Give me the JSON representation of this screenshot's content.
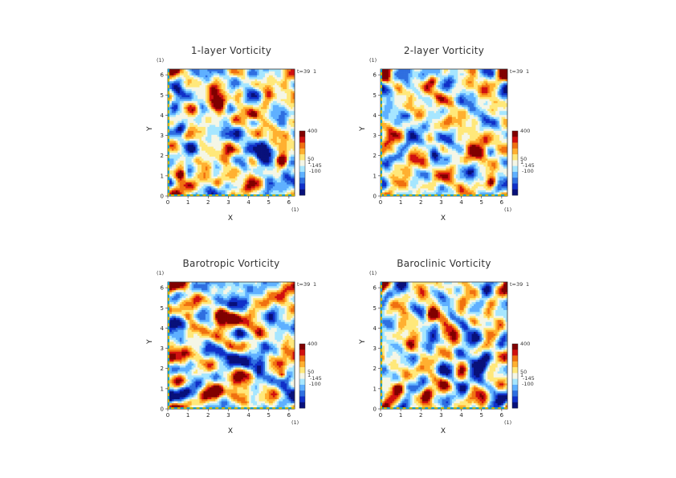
{
  "colors": {
    "scale": [
      "#08107a",
      "#1030c8",
      "#2f6fe0",
      "#5fb0ff",
      "#a6e6ff",
      "#f4f6e6",
      "#ffe87a",
      "#ffb030",
      "#f07010",
      "#d01010",
      "#800000"
    ],
    "tick_bar": [
      "#11a0c8",
      "#c8b400"
    ]
  },
  "chart_data": [
    {
      "type": "heatmap",
      "title": "1-layer Vorticity",
      "xlabel": "X",
      "ylabel": "Y",
      "xlim": [
        0,
        6.283
      ],
      "ylim": [
        0,
        6.283
      ],
      "xticks": [
        "0",
        "1",
        "2",
        "3",
        "4",
        "5",
        "6"
      ],
      "yticks": [
        "0",
        "1",
        "2",
        "3",
        "4",
        "5",
        "6"
      ],
      "unit_x": "(1)",
      "unit_y": "(1)",
      "time_label": "t=39",
      "time_unit": "1",
      "colorbar_labels": [
        "400",
        "50",
        "1",
        "-145",
        "-100"
      ],
      "grid": false,
      "vortices": [
        {
          "x": 4.7,
          "y": 2.1,
          "sign": -1,
          "r": 0.55
        },
        {
          "x": 2.55,
          "y": 4.6,
          "sign": 1,
          "r": 0.35
        },
        {
          "x": 2.4,
          "y": 0.7,
          "sign": 1,
          "r": 0.3
        },
        {
          "x": 0.7,
          "y": 1.1,
          "sign": 1,
          "r": 0.25
        },
        {
          "x": 0.6,
          "y": 3.3,
          "sign": -1,
          "r": 0.3
        },
        {
          "x": 4.3,
          "y": 4.0,
          "sign": 1,
          "r": 0.25
        },
        {
          "x": 5.7,
          "y": 1.8,
          "sign": 1,
          "r": 0.25
        }
      ],
      "seed": 11
    },
    {
      "type": "heatmap",
      "title": "2-layer Vorticity",
      "xlabel": "X",
      "ylabel": "Y",
      "xlim": [
        0,
        6.283
      ],
      "ylim": [
        0,
        6.283
      ],
      "xticks": [
        "0",
        "1",
        "2",
        "3",
        "4",
        "5",
        "6"
      ],
      "yticks": [
        "0",
        "1",
        "2",
        "3",
        "4",
        "5",
        "6"
      ],
      "unit_x": "(1)",
      "unit_y": "(1)",
      "time_label": "t=39",
      "time_unit": "1",
      "colorbar_labels": [
        "400",
        "50",
        "1",
        "-145",
        "-100"
      ],
      "grid": false,
      "vortices": [
        {
          "x": 4.8,
          "y": 2.2,
          "sign": 1,
          "r": 0.45
        },
        {
          "x": 2.6,
          "y": 5.7,
          "sign": 1,
          "r": 0.25
        },
        {
          "x": 1.3,
          "y": 4.0,
          "sign": -1,
          "r": 0.3
        },
        {
          "x": 2.7,
          "y": 2.0,
          "sign": -1,
          "r": 0.3
        },
        {
          "x": 0.6,
          "y": 2.2,
          "sign": 1,
          "r": 0.25
        },
        {
          "x": 5.5,
          "y": 0.7,
          "sign": 1,
          "r": 0.25
        }
      ],
      "seed": 23
    },
    {
      "type": "heatmap",
      "title": "Barotropic Vorticity",
      "xlabel": "X",
      "ylabel": "Y",
      "xlim": [
        0,
        6.283
      ],
      "ylim": [
        0,
        6.283
      ],
      "xticks": [
        "0",
        "1",
        "2",
        "3",
        "4",
        "5",
        "6"
      ],
      "yticks": [
        "0",
        "1",
        "2",
        "3",
        "4",
        "5",
        "6"
      ],
      "unit_x": "(1)",
      "unit_y": "(1)",
      "time_label": "t=39",
      "time_unit": "1",
      "colorbar_labels": [
        "400",
        "50",
        "1",
        "-145",
        "-100"
      ],
      "grid": false,
      "vortices": [
        {
          "x": 4.7,
          "y": 2.2,
          "sign": -1,
          "r": 0.45
        },
        {
          "x": 2.5,
          "y": 4.6,
          "sign": 1,
          "r": 0.3
        },
        {
          "x": 1.0,
          "y": 4.6,
          "sign": 1,
          "r": 0.25
        },
        {
          "x": 2.4,
          "y": 0.9,
          "sign": 1,
          "r": 0.25
        },
        {
          "x": 5.7,
          "y": 1.7,
          "sign": 1,
          "r": 0.2
        }
      ],
      "seed": 37
    },
    {
      "type": "heatmap",
      "title": "Baroclinic Vorticity",
      "xlabel": "X",
      "ylabel": "Y",
      "xlim": [
        0,
        6.283
      ],
      "ylim": [
        0,
        6.283
      ],
      "xticks": [
        "0",
        "1",
        "2",
        "3",
        "4",
        "5",
        "6"
      ],
      "yticks": [
        "0",
        "1",
        "2",
        "3",
        "4",
        "5",
        "6"
      ],
      "unit_x": "(1)",
      "unit_y": "(1)",
      "time_label": "t=39",
      "time_unit": "1",
      "colorbar_labels": [
        "400",
        "50",
        "1",
        "-145",
        "-100"
      ],
      "grid": false,
      "vortices": [
        {
          "x": 4.7,
          "y": 2.1,
          "sign": -1,
          "r": 0.55
        },
        {
          "x": 2.5,
          "y": 4.6,
          "sign": 1,
          "r": 0.3
        },
        {
          "x": 2.3,
          "y": 0.7,
          "sign": 1,
          "r": 0.3
        },
        {
          "x": 5.0,
          "y": 3.4,
          "sign": -1,
          "r": 0.3
        },
        {
          "x": 0.8,
          "y": 1.0,
          "sign": 1,
          "r": 0.25
        }
      ],
      "seed": 51
    }
  ]
}
